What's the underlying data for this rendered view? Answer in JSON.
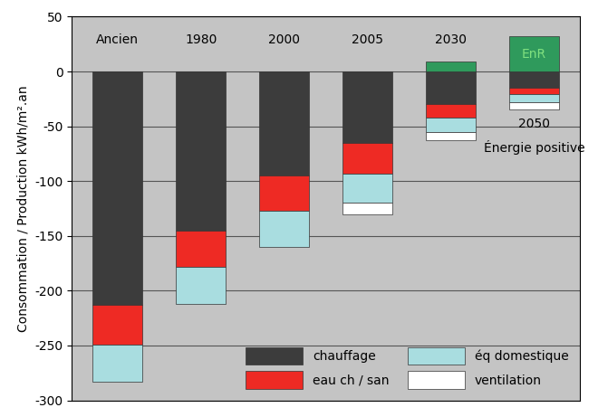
{
  "chart_data": {
    "type": "bar",
    "stacked": true,
    "y_label": "Consommation / Production kWh/m².an",
    "categories": [
      "Ancien",
      "1980",
      "2000",
      "2005",
      "2030",
      "2050"
    ],
    "annotation": "Énergie positive",
    "series": [
      {
        "name": "chauffage",
        "color": "#3c3c3c",
        "values": [
          -213,
          -145,
          -95,
          -65,
          -30,
          -15
        ]
      },
      {
        "name": "eau ch / san",
        "color": "#ee2a24",
        "values": [
          -36,
          -33,
          -32,
          -28,
          -12,
          -6
        ]
      },
      {
        "name": "éq domestique",
        "color": "#a9dde0",
        "values": [
          -34,
          -34,
          -33,
          -27,
          -13,
          -7
        ]
      },
      {
        "name": "ventilation",
        "color": "#ffffff",
        "values": [
          null,
          null,
          null,
          -10,
          -8,
          -7
        ]
      },
      {
        "name": "EnR",
        "color": "#2f9a5c",
        "values": [
          null,
          null,
          null,
          null,
          9,
          32
        ]
      }
    ],
    "ylim": [
      -300,
      50
    ],
    "yticks": [
      -300,
      -250,
      -200,
      -150,
      -100,
      -50,
      0,
      50
    ],
    "grid": true,
    "legend": "lower right",
    "tick_labels": "y"
  }
}
